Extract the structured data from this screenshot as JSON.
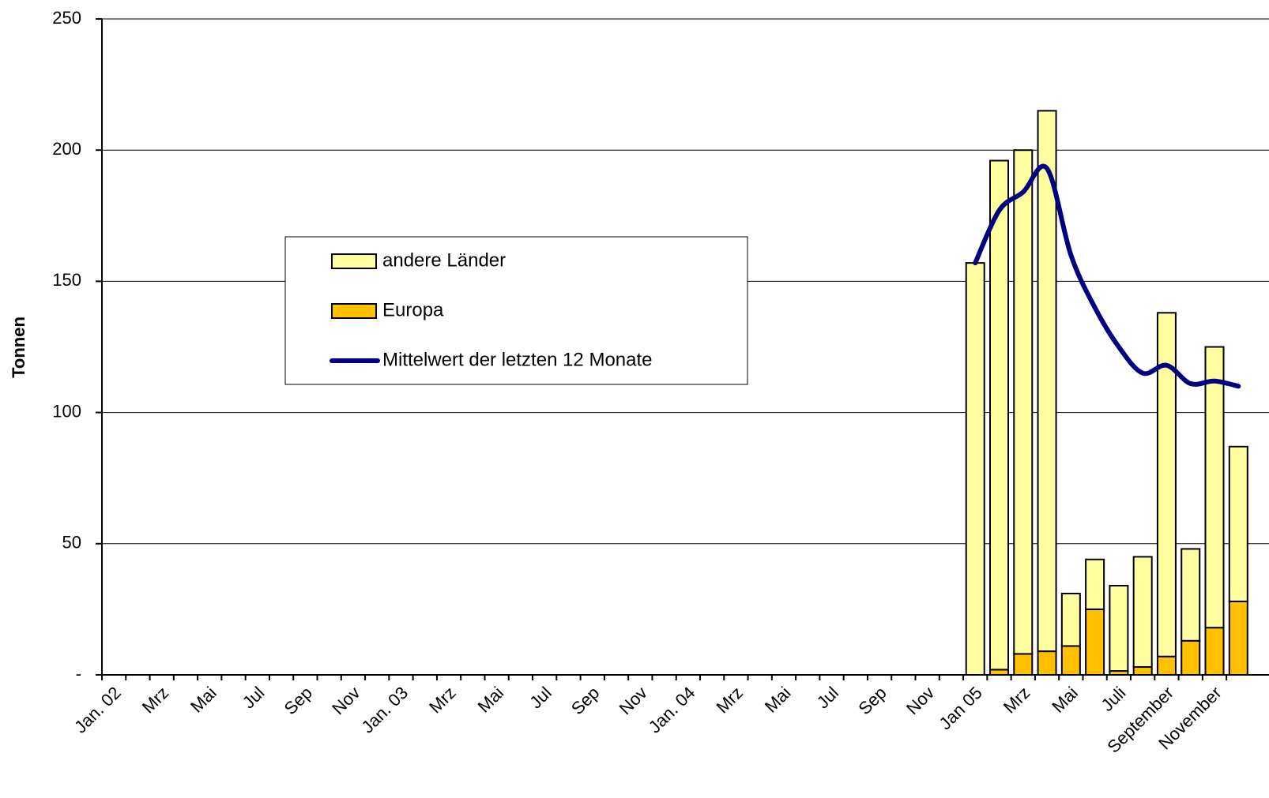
{
  "chart_data": {
    "type": "bar",
    "stacked": true,
    "y_label": "Tonnen",
    "categories": [
      "Jan. 02",
      null,
      "Mrz",
      null,
      "Mai",
      null,
      "Jul",
      null,
      "Sep",
      null,
      "Nov",
      null,
      "Jan. 03",
      null,
      "Mrz",
      null,
      "Mai",
      null,
      "Jul",
      null,
      "Sep",
      null,
      "Nov",
      null,
      "Jan. 04",
      null,
      "Mrz",
      null,
      "Mai",
      null,
      "Jul",
      null,
      "Sep",
      null,
      "Nov",
      null,
      "Jan 05",
      null,
      "Mrz",
      null,
      "Mai",
      null,
      "Juli",
      null,
      "September",
      null,
      "November",
      null
    ],
    "series": [
      {
        "name": "Europa",
        "type": "bar",
        "color": "#ffc000",
        "values": [
          null,
          null,
          null,
          null,
          null,
          null,
          null,
          null,
          null,
          null,
          null,
          null,
          null,
          null,
          null,
          null,
          null,
          null,
          null,
          null,
          null,
          null,
          null,
          null,
          null,
          null,
          null,
          null,
          null,
          null,
          null,
          null,
          null,
          null,
          null,
          null,
          0,
          2,
          8,
          9,
          11,
          25,
          1.5,
          3,
          7,
          13,
          18,
          28
        ]
      },
      {
        "name": "andere Länder",
        "type": "bar",
        "color": "#ffffa0",
        "values": [
          null,
          null,
          null,
          null,
          null,
          null,
          null,
          null,
          null,
          null,
          null,
          null,
          null,
          null,
          null,
          null,
          null,
          null,
          null,
          null,
          null,
          null,
          null,
          null,
          null,
          null,
          null,
          null,
          null,
          null,
          null,
          null,
          null,
          null,
          null,
          null,
          157,
          194,
          192,
          206,
          20,
          19,
          32.5,
          42,
          131,
          35,
          107,
          59
        ]
      },
      {
        "name": "Mittelwert der letzten 12 Monate",
        "type": "line",
        "color": "#000080",
        "values": [
          null,
          null,
          null,
          null,
          null,
          null,
          null,
          null,
          null,
          null,
          null,
          null,
          null,
          null,
          null,
          null,
          null,
          null,
          null,
          null,
          null,
          null,
          null,
          null,
          null,
          null,
          null,
          null,
          null,
          null,
          null,
          null,
          null,
          null,
          null,
          null,
          157,
          177,
          184,
          193,
          160,
          140,
          125,
          115,
          118,
          111,
          112,
          110
        ]
      }
    ],
    "ylim": [
      0,
      250
    ],
    "yticks": [
      {
        "value": 0,
        "label": "-"
      },
      50,
      100,
      150,
      200,
      250
    ],
    "grid": true
  }
}
